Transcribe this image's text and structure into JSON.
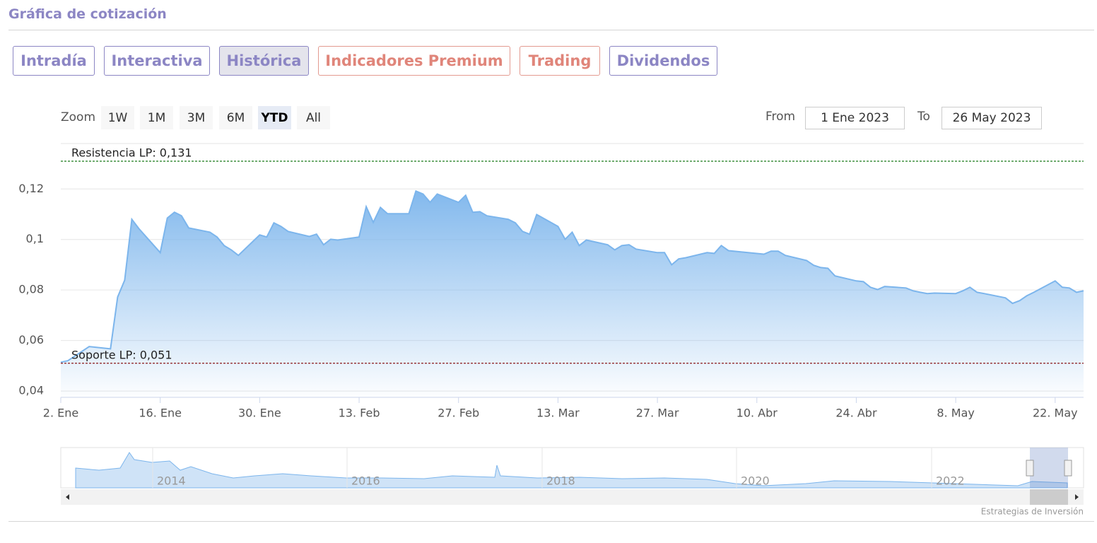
{
  "header": {
    "title": "Gráfica de cotización"
  },
  "tabs": [
    "Intradía",
    "Interactiva",
    "Histórica",
    "Indicadores Premium",
    "Trading",
    "Dividendos"
  ],
  "active_tab": 2,
  "zoom": {
    "label": "Zoom",
    "buttons": [
      "1W",
      "1M",
      "3M",
      "6M",
      "YTD",
      "All"
    ],
    "active": 4
  },
  "range": {
    "from_label": "From",
    "from": "1 Ene 2023",
    "to_label": "To",
    "to": "26 May 2023"
  },
  "chart_data": {
    "type": "area",
    "color": "#7cb5ec",
    "x": [
      "2023-01-02",
      "2023-01-03",
      "2023-01-06",
      "2023-01-09",
      "2023-01-10",
      "2023-01-11",
      "2023-01-12",
      "2023-01-13",
      "2023-01-16",
      "2023-01-17",
      "2023-01-18",
      "2023-01-19",
      "2023-01-20",
      "2023-01-23",
      "2023-01-24",
      "2023-01-25",
      "2023-01-26",
      "2023-01-27",
      "2023-01-30",
      "2023-01-31",
      "2023-02-01",
      "2023-02-02",
      "2023-02-03",
      "2023-02-06",
      "2023-02-07",
      "2023-02-08",
      "2023-02-09",
      "2023-02-10",
      "2023-02-13",
      "2023-02-14",
      "2023-02-15",
      "2023-02-16",
      "2023-02-17",
      "2023-02-20",
      "2023-02-21",
      "2023-02-22",
      "2023-02-23",
      "2023-02-24",
      "2023-02-27",
      "2023-02-28",
      "2023-03-01",
      "2023-03-02",
      "2023-03-03",
      "2023-03-06",
      "2023-03-07",
      "2023-03-08",
      "2023-03-09",
      "2023-03-10",
      "2023-03-13",
      "2023-03-14",
      "2023-03-15",
      "2023-03-16",
      "2023-03-17",
      "2023-03-20",
      "2023-03-21",
      "2023-03-22",
      "2023-03-23",
      "2023-03-24",
      "2023-03-27",
      "2023-03-28",
      "2023-03-29",
      "2023-03-30",
      "2023-03-31",
      "2023-04-03",
      "2023-04-04",
      "2023-04-05",
      "2023-04-06",
      "2023-04-11",
      "2023-04-12",
      "2023-04-13",
      "2023-04-14",
      "2023-04-17",
      "2023-04-18",
      "2023-04-19",
      "2023-04-20",
      "2023-04-21",
      "2023-04-24",
      "2023-04-25",
      "2023-04-26",
      "2023-04-27",
      "2023-04-28",
      "2023-05-01",
      "2023-05-02",
      "2023-05-03",
      "2023-05-04",
      "2023-05-05",
      "2023-05-08",
      "2023-05-09",
      "2023-05-10",
      "2023-05-11",
      "2023-05-12",
      "2023-05-15",
      "2023-05-16",
      "2023-05-17",
      "2023-05-18",
      "2023-05-19",
      "2023-05-22",
      "2023-05-23",
      "2023-05-24",
      "2023-05-25",
      "2023-05-26"
    ],
    "values": [
      0.0514,
      0.052,
      0.0576,
      0.0567,
      0.0772,
      0.0839,
      0.108,
      0.1043,
      0.0948,
      0.1085,
      0.1108,
      0.1094,
      0.1046,
      0.1029,
      0.101,
      0.0976,
      0.0959,
      0.0937,
      0.1018,
      0.101,
      0.1066,
      0.1052,
      0.1032,
      0.1012,
      0.1021,
      0.0979,
      0.1001,
      0.0998,
      0.101,
      0.113,
      0.1068,
      0.1127,
      0.1102,
      0.1102,
      0.1192,
      0.118,
      0.1147,
      0.118,
      0.1147,
      0.1175,
      0.1108,
      0.111,
      0.1094,
      0.108,
      0.1066,
      0.1032,
      0.1021,
      0.1099,
      0.1052,
      0.1001,
      0.1029,
      0.0976,
      0.0998,
      0.0979,
      0.0959,
      0.0976,
      0.0979,
      0.0962,
      0.0948,
      0.0948,
      0.09,
      0.0923,
      0.0928,
      0.0948,
      0.0945,
      0.0976,
      0.0956,
      0.0942,
      0.0954,
      0.0954,
      0.0937,
      0.0917,
      0.0898,
      0.0889,
      0.0886,
      0.0856,
      0.0836,
      0.0833,
      0.0811,
      0.0802,
      0.0814,
      0.0808,
      0.0797,
      0.0791,
      0.0786,
      0.0788,
      0.0786,
      0.0797,
      0.0811,
      0.0791,
      0.0786,
      0.0769,
      0.0747,
      0.0758,
      0.0777,
      0.0791,
      0.0836,
      0.0811,
      0.0808,
      0.0791,
      0.0797
    ],
    "xlim": [
      "2023-01-02",
      "2023-05-26"
    ],
    "xticks": [
      {
        "value": "2023-01-02",
        "label": "2. Ene"
      },
      {
        "value": "2023-01-16",
        "label": "16. Ene"
      },
      {
        "value": "2023-01-30",
        "label": "30. Ene"
      },
      {
        "value": "2023-02-13",
        "label": "13. Feb"
      },
      {
        "value": "2023-02-27",
        "label": "27. Feb"
      },
      {
        "value": "2023-03-13",
        "label": "13. Mar"
      },
      {
        "value": "2023-03-27",
        "label": "27. Mar"
      },
      {
        "value": "2023-04-10",
        "label": "10. Abr"
      },
      {
        "value": "2023-04-24",
        "label": "24. Abr"
      },
      {
        "value": "2023-05-08",
        "label": "8. May"
      },
      {
        "value": "2023-05-22",
        "label": "22. May"
      }
    ],
    "ylim": [
      0.0375,
      0.138
    ],
    "yticks": [
      {
        "value": 0.04,
        "label": "0,04"
      },
      {
        "value": 0.06,
        "label": "0,06"
      },
      {
        "value": 0.08,
        "label": "0,08"
      },
      {
        "value": 0.1,
        "label": "0,1"
      },
      {
        "value": 0.12,
        "label": "0,12"
      }
    ],
    "grid": true,
    "plot_lines": [
      {
        "value": 0.131,
        "label": "Resistencia LP: 0,131",
        "color": "#1a7a1a"
      },
      {
        "value": 0.051,
        "label": "Soporte LP: 0,051",
        "color": "#8b1a1a"
      }
    ]
  },
  "navigator": {
    "labels": [
      "2014",
      "2016",
      "2018",
      "2020",
      "2022"
    ]
  },
  "credits": "Estrategias de Inversión"
}
